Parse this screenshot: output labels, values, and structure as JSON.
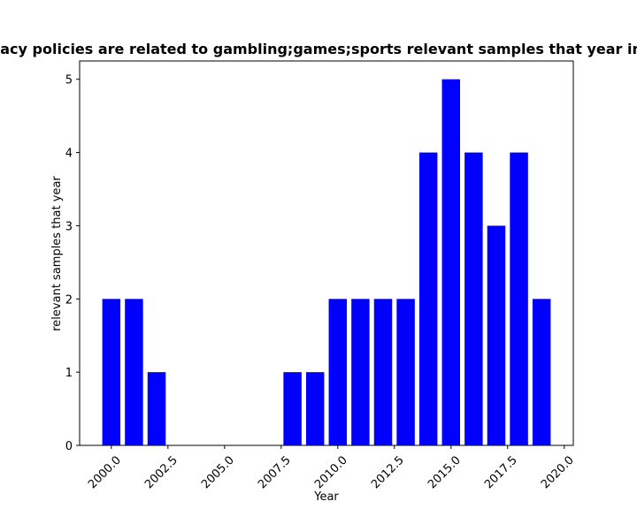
{
  "chart_data": {
    "type": "bar",
    "title": "Number of privacy policies are related to gambling;games;sports relevant samples that year in privacy policies",
    "xlabel": "Year",
    "ylabel": "relevant samples that year",
    "x": [
      2000,
      2001,
      2002,
      2008,
      2009,
      2010,
      2011,
      2012,
      2013,
      2014,
      2015,
      2016,
      2017,
      2018,
      2019
    ],
    "values": [
      2,
      2,
      1,
      1,
      1,
      2,
      2,
      2,
      2,
      4,
      5,
      4,
      3,
      4,
      2
    ],
    "bar_color": "#0000ff",
    "xlim": [
      1998.6,
      2020.4
    ],
    "ylim": [
      0,
      5.25
    ],
    "xticks": [
      2000.0,
      2002.5,
      2005.0,
      2007.5,
      2010.0,
      2012.5,
      2015.0,
      2017.5,
      2020.0
    ],
    "xtick_labels": [
      "2000.0",
      "2002.5",
      "2005.0",
      "2007.5",
      "2010.0",
      "2012.5",
      "2015.0",
      "2017.5",
      "2020.0"
    ],
    "yticks": [
      0,
      1,
      2,
      3,
      4,
      5
    ],
    "ytick_labels": [
      "0",
      "1",
      "2",
      "3",
      "4",
      "5"
    ],
    "grid": false,
    "legend": "none"
  }
}
